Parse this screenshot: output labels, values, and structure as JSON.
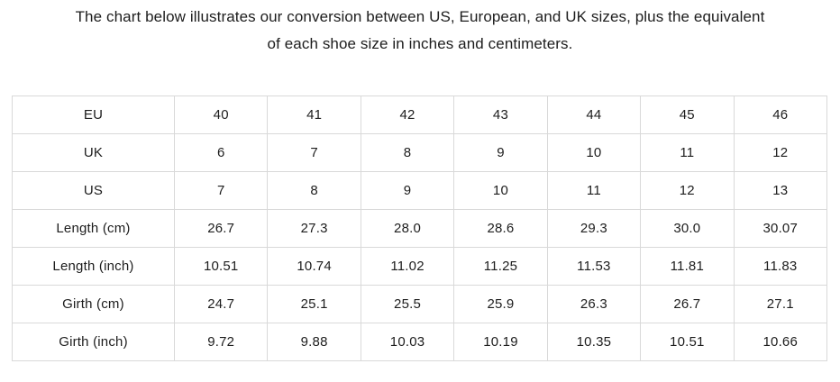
{
  "title": {
    "line1": "The chart below illustrates our conversion between US, European, and UK sizes, plus the equivalent",
    "line2": "of each shoe size in inches and centimeters."
  },
  "colors": {
    "text": "#1d1d1d",
    "border": "#d9d9d9",
    "background": "#ffffff"
  },
  "chart_data": {
    "type": "table",
    "title": "The chart below illustrates our conversion between US, European, and UK sizes, plus the equivalent of each shoe size in inches and centimeters.",
    "rows": [
      {
        "label": "EU",
        "values": [
          "40",
          "41",
          "42",
          "43",
          "44",
          "45",
          "46"
        ]
      },
      {
        "label": "UK",
        "values": [
          "6",
          "7",
          "8",
          "9",
          "10",
          "11",
          "12"
        ]
      },
      {
        "label": "US",
        "values": [
          "7",
          "8",
          "9",
          "10",
          "11",
          "12",
          "13"
        ]
      },
      {
        "label": "Length (cm)",
        "values": [
          "26.7",
          "27.3",
          "28.0",
          "28.6",
          "29.3",
          "30.0",
          "30.07"
        ]
      },
      {
        "label": "Length (inch)",
        "values": [
          "10.51",
          "10.74",
          "11.02",
          "11.25",
          "11.53",
          "11.81",
          "11.83"
        ]
      },
      {
        "label": "Girth (cm)",
        "values": [
          "24.7",
          "25.1",
          "25.5",
          "25.9",
          "26.3",
          "26.7",
          "27.1"
        ]
      },
      {
        "label": "Girth (inch)",
        "values": [
          "9.72",
          "9.88",
          "10.03",
          "10.19",
          "10.35",
          "10.51",
          "10.66"
        ]
      }
    ]
  }
}
